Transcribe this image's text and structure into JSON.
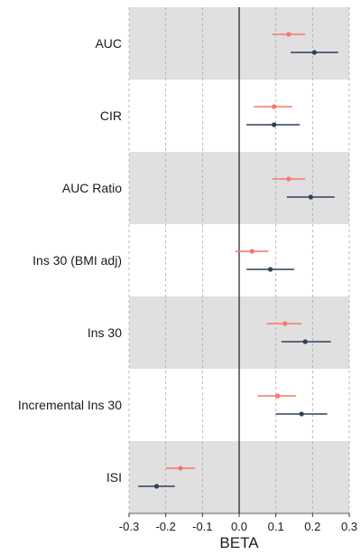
{
  "chart_data": {
    "type": "forest",
    "xlabel": "BETA",
    "xlim": [
      -0.3,
      0.3
    ],
    "xticks": [
      "-0.3",
      "-0.2",
      "-0.1",
      "0.0",
      "0.1",
      "0.2",
      "0.3"
    ],
    "reference_line": 0,
    "grid": "vertical dashed",
    "band_shading": "alternating grey",
    "rows": [
      {
        "label": "AUC",
        "shaded": true,
        "estimates": [
          {
            "series": 0,
            "beta": 0.135,
            "lo": 0.09,
            "hi": 0.18
          },
          {
            "series": 1,
            "beta": 0.205,
            "lo": 0.14,
            "hi": 0.27
          }
        ]
      },
      {
        "label": "CIR",
        "shaded": false,
        "estimates": [
          {
            "series": 0,
            "beta": 0.095,
            "lo": 0.04,
            "hi": 0.145
          },
          {
            "series": 1,
            "beta": 0.095,
            "lo": 0.02,
            "hi": 0.165
          }
        ]
      },
      {
        "label": "AUC Ratio",
        "shaded": true,
        "estimates": [
          {
            "series": 0,
            "beta": 0.135,
            "lo": 0.09,
            "hi": 0.18
          },
          {
            "series": 1,
            "beta": 0.195,
            "lo": 0.13,
            "hi": 0.26
          }
        ]
      },
      {
        "label": "Ins 30 (BMI adj)",
        "shaded": false,
        "estimates": [
          {
            "series": 0,
            "beta": 0.035,
            "lo": -0.01,
            "hi": 0.08
          },
          {
            "series": 1,
            "beta": 0.085,
            "lo": 0.02,
            "hi": 0.15
          }
        ]
      },
      {
        "label": "Ins 30",
        "shaded": true,
        "estimates": [
          {
            "series": 0,
            "beta": 0.125,
            "lo": 0.075,
            "hi": 0.17
          },
          {
            "series": 1,
            "beta": 0.18,
            "lo": 0.115,
            "hi": 0.25
          }
        ]
      },
      {
        "label": "Incremental Ins 30",
        "shaded": false,
        "estimates": [
          {
            "series": 0,
            "beta": 0.105,
            "lo": 0.05,
            "hi": 0.155
          },
          {
            "series": 1,
            "beta": 0.17,
            "lo": 0.1,
            "hi": 0.24
          }
        ]
      },
      {
        "label": "ISI",
        "shaded": true,
        "estimates": [
          {
            "series": 0,
            "beta": -0.16,
            "lo": -0.2,
            "hi": -0.12
          },
          {
            "series": 1,
            "beta": -0.225,
            "lo": -0.275,
            "hi": -0.175
          }
        ]
      }
    ],
    "series_colors": [
      "#f8766d",
      "#2e3f5c"
    ],
    "band_color": "#e0e0e0",
    "grid_color": "#a8a8a8",
    "zero_line_color": "#1a1a1a"
  }
}
